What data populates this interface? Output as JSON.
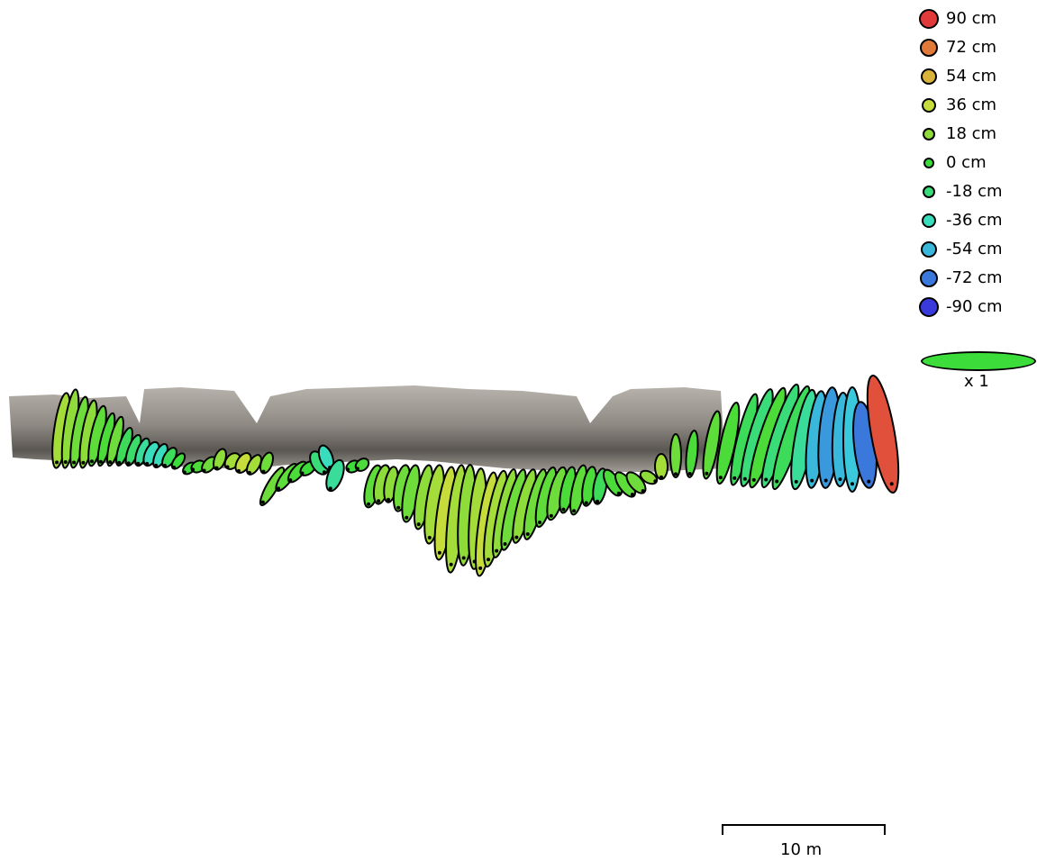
{
  "legend": {
    "items": [
      {
        "label": "90 cm",
        "color": "#e03a3a"
      },
      {
        "label": "72 cm",
        "color": "#e07a3a"
      },
      {
        "label": "54 cm",
        "color": "#d9b23a"
      },
      {
        "label": "36 cm",
        "color": "#c6dc3a"
      },
      {
        "label": "18 cm",
        "color": "#8edc3a"
      },
      {
        "label": "0 cm",
        "color": "#3cdc3a"
      },
      {
        "label": "-18 cm",
        "color": "#3adc7a"
      },
      {
        "label": "-36 cm",
        "color": "#3adcbe"
      },
      {
        "label": "-54 cm",
        "color": "#3ab8dc"
      },
      {
        "label": "-72 cm",
        "color": "#3a78dc"
      },
      {
        "label": "-90 cm",
        "color": "#3a3adc"
      }
    ],
    "scale_color": "#3cdc3a",
    "scale_label": "x 1"
  },
  "scalebar": {
    "label": "10 m"
  },
  "colors": {
    "rock_light": "#a8a49e",
    "rock_dark": "#4d4a46",
    "outline": "#000000"
  }
}
